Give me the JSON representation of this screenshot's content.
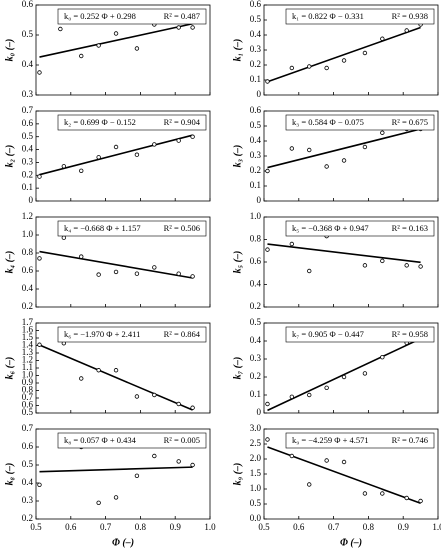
{
  "chart_data": [
    {
      "type": "scatter",
      "fit_label": "k₀ = 0.252 Φ + 0.298",
      "r2_label": "R² = 0.487",
      "ylabel": "k₀ (–)",
      "x": [
        0.51,
        0.57,
        0.63,
        0.68,
        0.73,
        0.79,
        0.84,
        0.91,
        0.95
      ],
      "values": [
        0.375,
        0.52,
        0.43,
        0.465,
        0.505,
        0.455,
        0.535,
        0.525,
        0.525
      ],
      "fit": {
        "slope": 0.252,
        "intercept": 0.298
      },
      "color": "#000000",
      "xlim": [
        0.5,
        1.0
      ],
      "xticks": [
        0.5,
        0.6,
        0.7,
        0.8,
        0.9,
        {
          "value": 1.0,
          "label": "1.0"
        }
      ],
      "ylim": [
        0.3,
        0.6
      ],
      "yticks": [
        0.3,
        0.4,
        0.5,
        0.6
      ]
    },
    {
      "type": "scatter",
      "fit_label": "k₁ = 0.822 Φ − 0.331",
      "r2_label": "R² = 0.938",
      "ylabel": "k₁ (–)",
      "x": [
        0.51,
        0.58,
        0.63,
        0.68,
        0.73,
        0.79,
        0.84,
        0.91,
        0.95
      ],
      "values": [
        0.09,
        0.18,
        0.19,
        0.18,
        0.23,
        0.28,
        0.375,
        0.43,
        0.47
      ],
      "fit": {
        "slope": 0.822,
        "intercept": -0.331
      },
      "color": "#000000",
      "xlim": [
        0.5,
        1.0
      ],
      "xticks": [
        0.5,
        0.6,
        0.7,
        0.8,
        0.9,
        {
          "value": 1.0,
          "label": "1.0"
        }
      ],
      "ylim": [
        0,
        0.6
      ],
      "yticks": [
        0,
        0.1,
        0.2,
        0.3,
        0.4,
        0.5,
        0.6
      ]
    },
    {
      "type": "scatter",
      "fit_label": "k₂ = 0.699 Φ − 0.152",
      "r2_label": "R² = 0.904",
      "ylabel": "k₂ (–)",
      "x": [
        0.51,
        0.58,
        0.63,
        0.68,
        0.73,
        0.79,
        0.84,
        0.91,
        0.95
      ],
      "values": [
        0.19,
        0.27,
        0.235,
        0.34,
        0.42,
        0.36,
        0.44,
        0.47,
        0.5
      ],
      "fit": {
        "slope": 0.699,
        "intercept": -0.152
      },
      "color": "#000000",
      "xlim": [
        0.5,
        1.0
      ],
      "xticks": [
        0.5,
        0.6,
        0.7,
        0.8,
        0.9,
        {
          "value": 1.0,
          "label": "1.0"
        }
      ],
      "ylim": [
        0,
        0.7
      ],
      "yticks": [
        0,
        0.1,
        0.2,
        0.3,
        0.4,
        0.5,
        0.6,
        0.7
      ]
    },
    {
      "type": "scatter",
      "fit_label": "k₃ = 0.584 Φ − 0.075",
      "r2_label": "R² = 0.675",
      "ylabel": "k₃ (–)",
      "x": [
        0.51,
        0.58,
        0.63,
        0.68,
        0.73,
        0.79,
        0.84,
        0.91,
        0.95
      ],
      "values": [
        0.2,
        0.35,
        0.34,
        0.23,
        0.27,
        0.36,
        0.455,
        0.48,
        0.48
      ],
      "fit": {
        "slope": 0.584,
        "intercept": -0.075
      },
      "color": "#000000",
      "xlim": [
        0.5,
        1.0
      ],
      "xticks": [
        0.5,
        0.6,
        0.7,
        0.8,
        0.9,
        {
          "value": 1.0,
          "label": "1.0"
        }
      ],
      "ylim": [
        0,
        0.6
      ],
      "yticks": [
        0,
        0.1,
        0.2,
        0.3,
        0.4,
        0.5,
        0.6
      ]
    },
    {
      "type": "scatter",
      "fit_label": "k₄ = −0.668 Φ + 1.157",
      "r2_label": "R² = 0.506",
      "ylabel": "k₄ (–)",
      "x": [
        0.51,
        0.58,
        0.63,
        0.68,
        0.73,
        0.79,
        0.84,
        0.91,
        0.95
      ],
      "values": [
        0.74,
        0.97,
        0.76,
        0.56,
        0.59,
        0.57,
        0.64,
        0.57,
        0.54
      ],
      "fit": {
        "slope": -0.668,
        "intercept": 1.157
      },
      "color": "#000000",
      "xlim": [
        0.5,
        1.0
      ],
      "xticks": [
        0.5,
        0.6,
        0.7,
        0.8,
        0.9,
        {
          "value": 1.0,
          "label": "1.0"
        }
      ],
      "ylim": [
        0.2,
        1.2
      ],
      "yticks": [
        0.2,
        0.4,
        0.6,
        0.8,
        {
          "value": 1.0,
          "label": "1.0"
        },
        1.2
      ]
    },
    {
      "type": "scatter",
      "fit_label": "k₅ = −0.368 Φ + 0.947",
      "r2_label": "R² = 0.163",
      "ylabel": "k₅ (–)",
      "x": [
        0.51,
        0.58,
        0.63,
        0.68,
        0.79,
        0.84,
        0.91,
        0.95
      ],
      "values": [
        0.71,
        0.76,
        0.52,
        0.83,
        0.57,
        0.61,
        0.57,
        0.56
      ],
      "fit": {
        "slope": -0.368,
        "intercept": 0.947
      },
      "color": "#000000",
      "xlim": [
        0.5,
        1.0
      ],
      "xticks": [
        0.5,
        0.6,
        0.7,
        0.8,
        0.9,
        {
          "value": 1.0,
          "label": "1.0"
        }
      ],
      "ylim": [
        0.2,
        1.0
      ],
      "yticks": [
        0.2,
        0.4,
        0.6,
        0.8,
        {
          "value": 1.0,
          "label": "1.0"
        }
      ]
    },
    {
      "type": "scatter",
      "fit_label": "k₆ = −1.970 Φ + 2.411",
      "r2_label": "R² = 0.864",
      "ylabel": "k₆ (–)",
      "x": [
        0.51,
        0.58,
        0.63,
        0.68,
        0.73,
        0.79,
        0.84,
        0.91,
        0.95
      ],
      "values": [
        1.41,
        1.43,
        0.96,
        1.07,
        1.07,
        0.72,
        0.74,
        0.62,
        0.57
      ],
      "fit": {
        "slope": -1.97,
        "intercept": 2.411
      },
      "color": "#000000",
      "xlim": [
        0.5,
        1.0
      ],
      "xticks": [
        0.5,
        0.6,
        0.7,
        0.8,
        0.9,
        {
          "value": 1.0,
          "label": "1.0"
        }
      ],
      "ylim": [
        0.5,
        1.7
      ],
      "yticks": [
        0.5,
        0.6,
        0.7,
        0.8,
        0.9,
        {
          "value": 1.0,
          "label": "1.0"
        },
        1.1,
        1.2,
        1.3,
        1.4,
        1.5,
        1.6,
        1.7
      ]
    },
    {
      "type": "scatter",
      "fit_label": "k₇ = 0.905 Φ − 0.447",
      "r2_label": "R² = 0.958",
      "ylabel": "k₇ (–)",
      "x": [
        0.51,
        0.58,
        0.63,
        0.68,
        0.73,
        0.79,
        0.84,
        0.91,
        0.95
      ],
      "values": [
        0.05,
        0.09,
        0.1,
        0.14,
        0.2,
        0.22,
        0.31,
        0.39,
        0.44
      ],
      "fit": {
        "slope": 0.905,
        "intercept": -0.447
      },
      "color": "#000000",
      "xlim": [
        0.5,
        1.0
      ],
      "xticks": [
        0.5,
        0.6,
        0.7,
        0.8,
        0.9,
        {
          "value": 1.0,
          "label": "1.0"
        }
      ],
      "ylim": [
        0,
        0.5
      ],
      "yticks": [
        0,
        0.1,
        0.2,
        0.3,
        0.4,
        0.5
      ]
    },
    {
      "type": "scatter",
      "fit_label": "k₈ = 0.057 Φ + 0.434",
      "r2_label": "R² = 0.005",
      "ylabel": "k₈ (–)",
      "xlabel": "Φ (–)",
      "x": [
        0.51,
        0.58,
        0.63,
        0.68,
        0.73,
        0.79,
        0.84,
        0.91,
        0.95
      ],
      "values": [
        0.39,
        0.65,
        0.6,
        0.29,
        0.32,
        0.44,
        0.55,
        0.52,
        0.5
      ],
      "fit": {
        "slope": 0.057,
        "intercept": 0.434
      },
      "color": "#000000",
      "xlim": [
        0.5,
        1.0
      ],
      "xticks": [
        0.5,
        0.6,
        0.7,
        0.8,
        0.9,
        {
          "value": 1.0,
          "label": "1.0"
        }
      ],
      "ylim": [
        0.2,
        0.7
      ],
      "yticks": [
        0.2,
        0.3,
        0.4,
        0.5,
        0.6,
        0.7
      ]
    },
    {
      "type": "scatter",
      "fit_label": "k₉ = −4.259 Φ + 4.571",
      "r2_label": "R² = 0.746",
      "ylabel": "k₉ (–)",
      "xlabel": "Φ (–)",
      "x": [
        0.51,
        0.58,
        0.63,
        0.68,
        0.73,
        0.79,
        0.84,
        0.91,
        0.95
      ],
      "values": [
        2.65,
        2.1,
        1.15,
        1.95,
        1.9,
        0.85,
        0.85,
        0.7,
        0.6
      ],
      "fit": {
        "slope": -4.259,
        "intercept": 4.571
      },
      "color": "#000000",
      "xlim": [
        0.5,
        1.0
      ],
      "xticks": [
        0.5,
        0.6,
        0.7,
        0.8,
        0.9,
        {
          "value": 1.0,
          "label": "1.0"
        }
      ],
      "ylim": [
        0,
        3.0
      ],
      "yticks": [
        {
          "value": 0,
          "label": "0.0"
        },
        0.5,
        {
          "value": 1.0,
          "label": "1.0"
        },
        1.5,
        {
          "value": 2.0,
          "label": "2.0"
        },
        2.5,
        {
          "value": 3.0,
          "label": "3.0"
        }
      ]
    }
  ]
}
